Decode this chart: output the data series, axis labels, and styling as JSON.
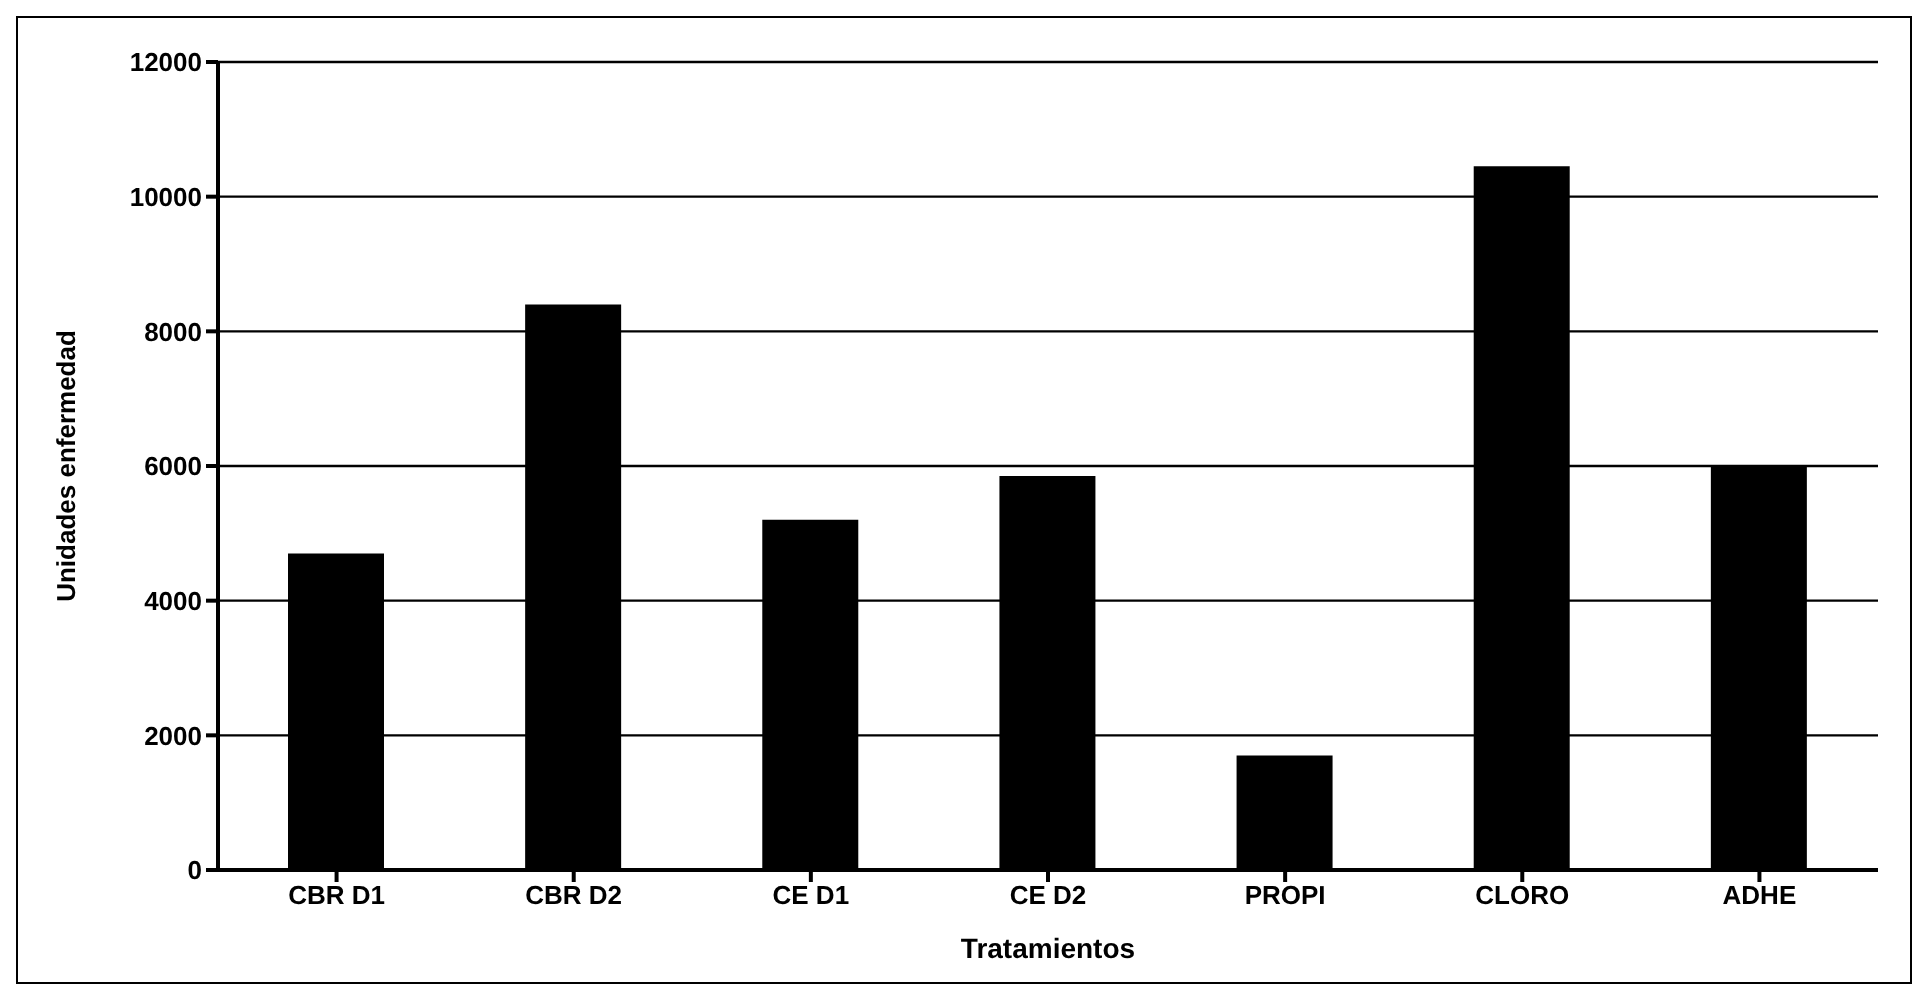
{
  "chart_data": {
    "type": "bar",
    "xlabel": "Tratamientos",
    "ylabel": "Unidades enfermedad",
    "categories": [
      "CBR D1",
      "CBR  D2",
      "CE D1",
      "CE D2",
      "PROPI",
      "CLORO",
      "ADHE"
    ],
    "values": [
      4700,
      8400,
      5200,
      5850,
      1700,
      10450,
      6000
    ],
    "color": "#000000",
    "ylim": [
      0,
      12000
    ],
    "yticks": [
      0,
      2000,
      4000,
      6000,
      8000,
      10000,
      12000
    ],
    "grid": "y"
  }
}
